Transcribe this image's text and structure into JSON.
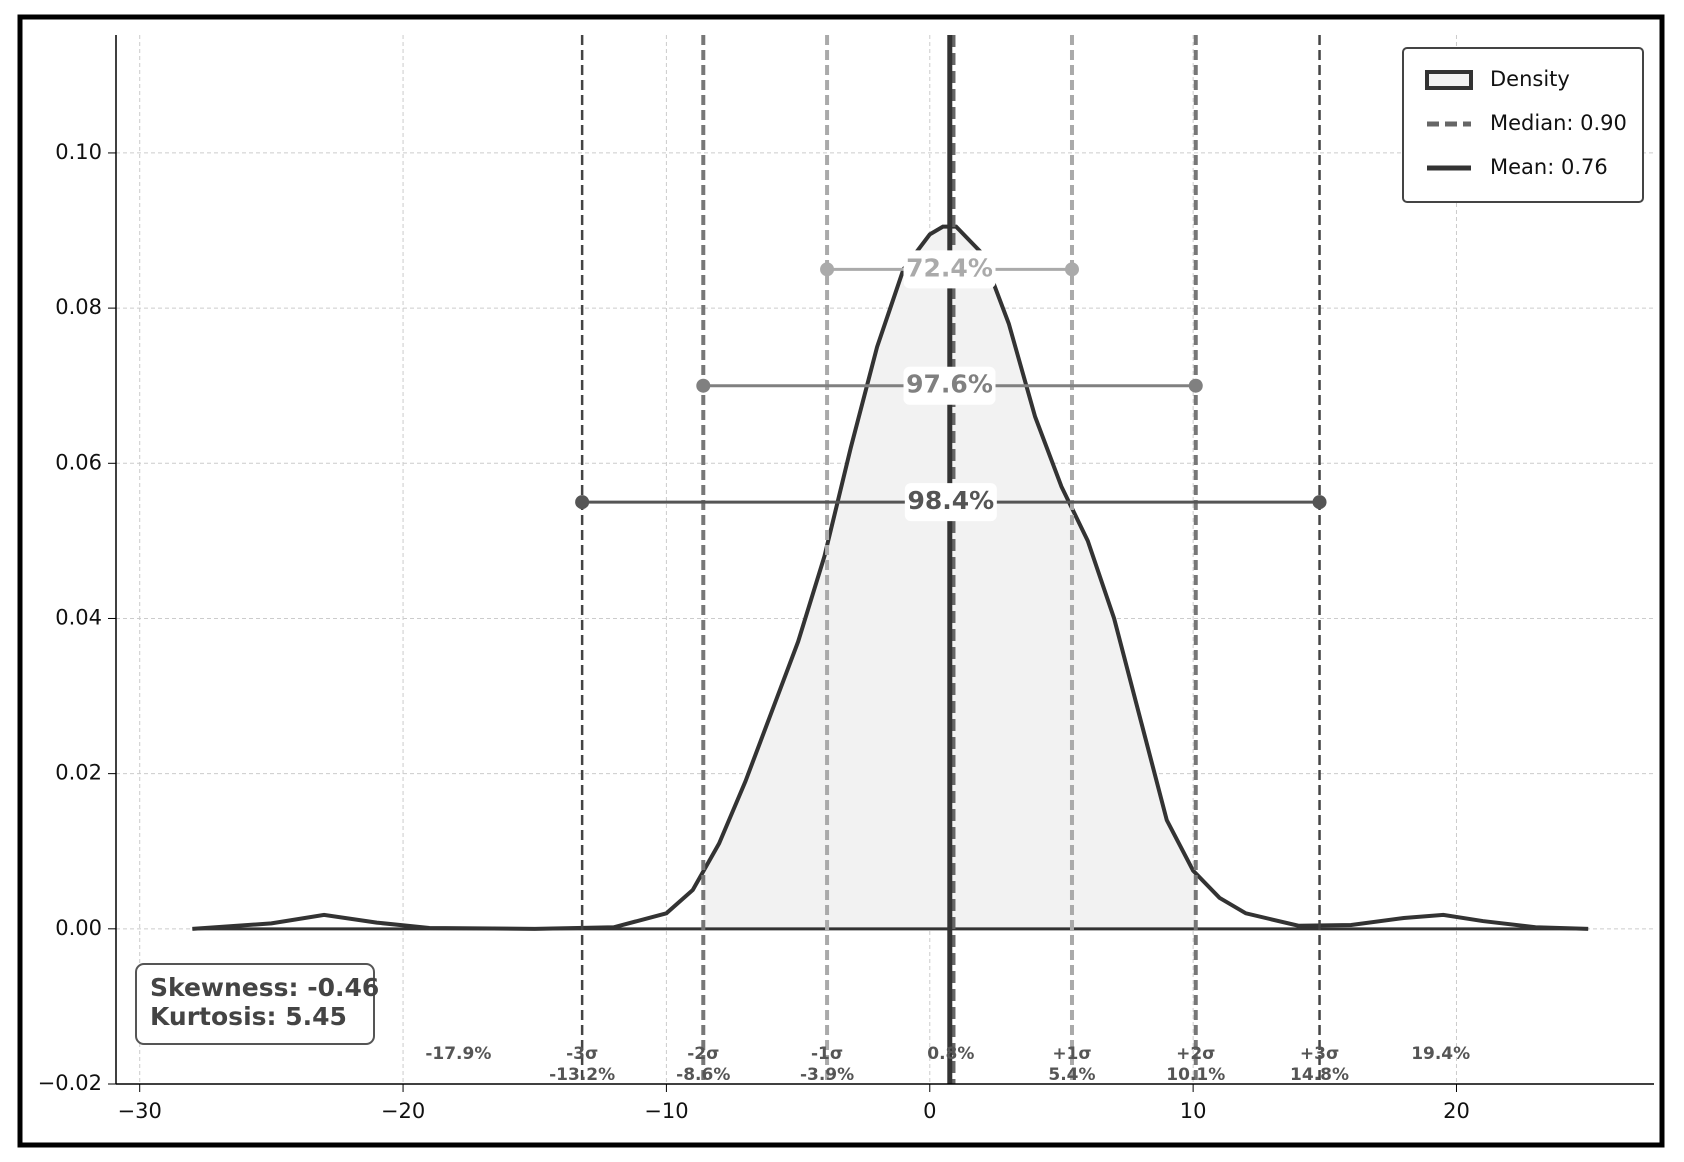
{
  "chart_data": {
    "type": "density",
    "xlim": [
      -30.9,
      27.5
    ],
    "ylim": [
      -0.02,
      0.1152
    ],
    "xticks": [
      {
        "value": -30,
        "label": "−30"
      },
      {
        "value": -20,
        "label": "−20"
      },
      {
        "value": -10,
        "label": "−10"
      },
      {
        "value": 0,
        "label": "0"
      },
      {
        "value": 10,
        "label": "10"
      },
      {
        "value": 20,
        "label": "20"
      }
    ],
    "yticks": [
      {
        "value": -0.02,
        "label": "−0.02"
      },
      {
        "value": 0,
        "label": "0.00"
      },
      {
        "value": 0.02,
        "label": "0.02"
      },
      {
        "value": 0.04,
        "label": "0.04"
      },
      {
        "value": 0.06,
        "label": "0.06"
      },
      {
        "value": 0.08,
        "label": "0.08"
      },
      {
        "value": 0.1,
        "label": "0.10"
      }
    ],
    "grid": true,
    "legend": "upper right",
    "series": [
      {
        "name": "Density",
        "color": "#333333",
        "fill": "#f2f2f2",
        "x": [
          -28,
          -25,
          -23,
          -21,
          -19,
          -15,
          -12,
          -10,
          -9,
          -8,
          -7,
          -6,
          -5,
          -4,
          -3,
          -2,
          -1,
          0,
          0.5,
          1,
          2,
          3,
          4,
          5,
          6,
          7,
          8,
          9,
          10,
          11,
          12,
          14,
          16,
          18,
          19.5,
          21,
          23,
          25
        ],
        "values": [
          0,
          0.0007,
          0.0018,
          0.0008,
          0.0001,
          0,
          0.0002,
          0.002,
          0.005,
          0.011,
          0.019,
          0.028,
          0.037,
          0.048,
          0.062,
          0.075,
          0.085,
          0.0895,
          0.0905,
          0.0905,
          0.087,
          0.078,
          0.066,
          0.057,
          0.05,
          0.04,
          0.027,
          0.014,
          0.0075,
          0.004,
          0.002,
          0.0004,
          0.0005,
          0.0014,
          0.0018,
          0.001,
          0.0002,
          0
        ]
      }
    ],
    "markers": [
      {
        "name": "Median: 0.90",
        "value": 0.9,
        "color": "#666666",
        "dashed": true
      },
      {
        "name": "Mean: 0.76",
        "value": 0.76,
        "color": "#333333",
        "dashed": false
      }
    ],
    "sigma_lines": [
      {
        "label": "-3σ",
        "value": -13.2,
        "value_label": "-13.2%",
        "color": "#444444"
      },
      {
        "label": "-2σ",
        "value": -8.6,
        "value_label": "-8.6%",
        "color": "#777777"
      },
      {
        "label": "-1σ",
        "value": -3.9,
        "value_label": "-3.9%",
        "color": "#aaaaaa"
      },
      {
        "label": "+1σ",
        "value": 5.4,
        "value_label": "5.4%",
        "color": "#aaaaaa"
      },
      {
        "label": "+2σ",
        "value": 10.1,
        "value_label": "10.1%",
        "color": "#777777"
      },
      {
        "label": "+3σ",
        "value": 14.8,
        "value_label": "14.8%",
        "color": "#444444"
      }
    ],
    "intervals": [
      {
        "label": "72.4%",
        "value": 72.4,
        "lower": -3.9,
        "upper": 5.4,
        "y": 0.085,
        "color": "#aaaaaa"
      },
      {
        "label": "97.6%",
        "value": 97.6,
        "lower": -8.6,
        "upper": 10.1,
        "y": 0.07,
        "color": "#808080"
      },
      {
        "label": "98.4%",
        "value": 98.4,
        "lower": -13.2,
        "upper": 14.8,
        "y": 0.055,
        "color": "#555555"
      }
    ],
    "point_labels": [
      {
        "x": -17.9,
        "label": "-17.9%"
      },
      {
        "x": 0.8,
        "label": "0.8%"
      },
      {
        "x": 19.4,
        "label": "19.4%"
      }
    ],
    "stats": [
      "Skewness: -0.46",
      "Kurtosis: 5.45"
    ]
  }
}
